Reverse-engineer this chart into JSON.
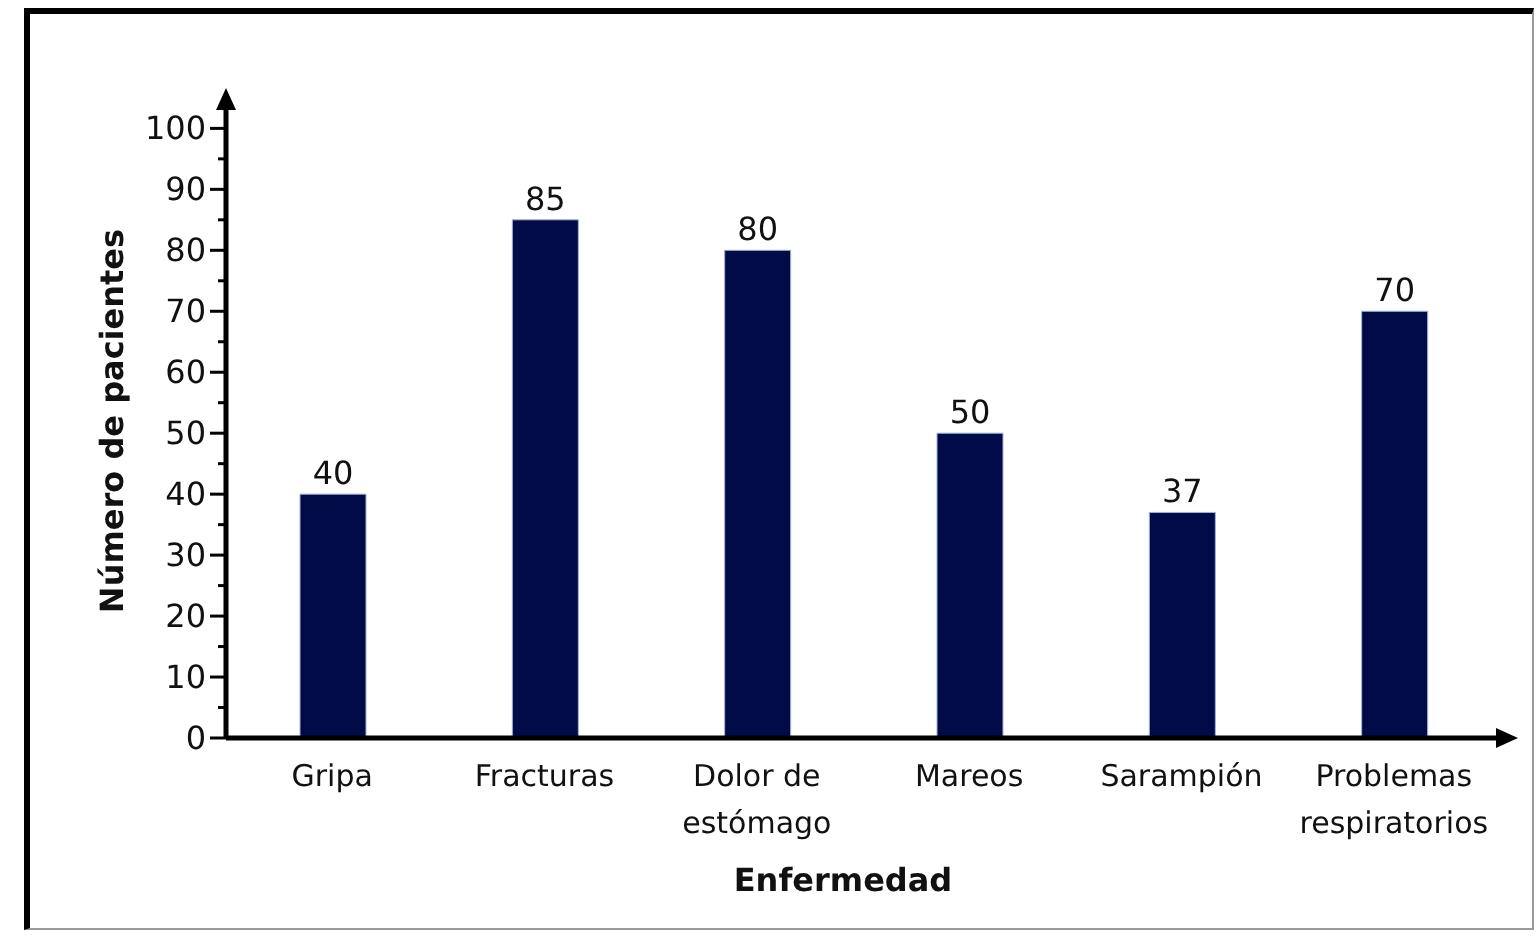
{
  "chart_data": {
    "type": "bar",
    "xlabel": "Enfermedad",
    "ylabel": "Número de pacientes",
    "categories": [
      "Gripa",
      "Fracturas",
      "Dolor de estómago",
      "Mareos",
      "Sarampión",
      "Problemas respiratorios"
    ],
    "values": [
      40,
      85,
      80,
      50,
      37,
      70
    ],
    "color": "#000b47",
    "ylim": [
      0,
      104
    ],
    "yticks": [
      0,
      {
        "value": 5,
        "label": null
      },
      10,
      {
        "value": 15,
        "label": null
      },
      20,
      {
        "value": 25,
        "label": null
      },
      30,
      {
        "value": 35,
        "label": null
      },
      40,
      {
        "value": 45,
        "label": null
      },
      50,
      {
        "value": 55,
        "label": null
      },
      60,
      {
        "value": 65,
        "label": null
      },
      70,
      {
        "value": 75,
        "label": null
      },
      80,
      {
        "value": 85,
        "label": null
      },
      90,
      {
        "value": 95,
        "label": null
      },
      100
    ],
    "data_labels": true
  }
}
